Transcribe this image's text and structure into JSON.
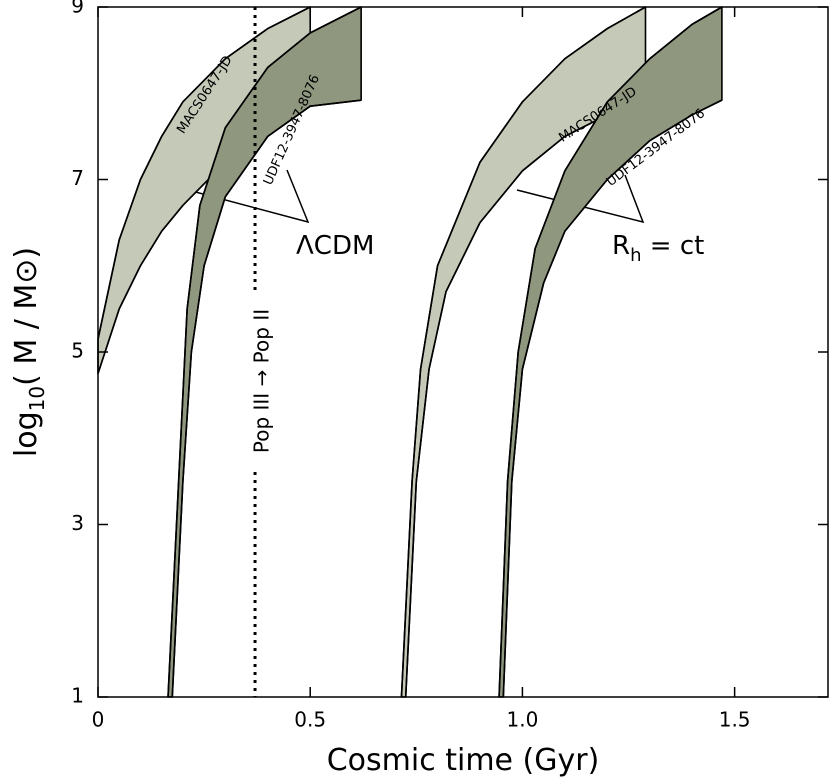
{
  "chart_data": {
    "type": "band",
    "xlabel": "Cosmic time (Gyr)",
    "ylabel": {
      "base": "log",
      "sub": "10",
      "rest": "( M / M⊙)"
    },
    "xlim": [
      0,
      1.72
    ],
    "ylim": [
      1,
      9
    ],
    "xticks": [
      0,
      0.5,
      {
        "value": 1,
        "label": "1.0"
      },
      1.5
    ],
    "yticks": [
      1,
      3,
      5,
      7,
      9
    ],
    "transition_x": 0.37,
    "annotations": {
      "lcdm": "ΛCDM",
      "rh": {
        "base": "R",
        "sub": "h",
        "rest": " = ct"
      },
      "transition": "Pop III  →  Pop II"
    },
    "series": [
      {
        "name": "MACS0647-JD",
        "color": "#c5c9b8",
        "upper_x": [
          0,
          0.05,
          0.1,
          0.15,
          0.2,
          0.3,
          0.4,
          0.5
        ],
        "upper": [
          5.15,
          6.3,
          7.0,
          7.5,
          7.9,
          8.4,
          8.75,
          9
        ],
        "lower_x": [
          0,
          0.05,
          0.1,
          0.15,
          0.2,
          0.3,
          0.4,
          0.5
        ],
        "lower": [
          4.75,
          5.5,
          6.0,
          6.4,
          6.7,
          7.2,
          7.6,
          7.9
        ]
      },
      {
        "name": "UDF12-3947-8076",
        "color": "#8f977f",
        "upper_x": [
          0.165,
          0.19,
          0.21,
          0.24,
          0.3,
          0.4,
          0.5,
          0.62
        ],
        "upper": [
          1,
          3.5,
          5.5,
          6.7,
          7.6,
          8.3,
          8.7,
          9
        ],
        "lower_x": [
          0.175,
          0.2,
          0.22,
          0.25,
          0.3,
          0.4,
          0.5,
          0.62
        ],
        "lower": [
          1,
          3.5,
          5.0,
          6.0,
          6.8,
          7.5,
          7.85,
          7.92
        ]
      },
      {
        "name": "MACS0647-JD",
        "color": "#c5c9b8",
        "upper_x": [
          0.715,
          0.74,
          0.76,
          0.8,
          0.9,
          1.0,
          1.1,
          1.2,
          1.29
        ],
        "upper": [
          1,
          3.5,
          4.8,
          6.0,
          7.2,
          7.9,
          8.4,
          8.75,
          9
        ],
        "lower_x": [
          0.725,
          0.75,
          0.78,
          0.82,
          0.9,
          1.0,
          1.1,
          1.2,
          1.29
        ],
        "lower": [
          1,
          3.5,
          4.8,
          5.7,
          6.5,
          7.1,
          7.5,
          7.75,
          7.92
        ]
      },
      {
        "name": "UDF12-3947-8076",
        "color": "#8f977f",
        "upper_x": [
          0.945,
          0.965,
          0.99,
          1.03,
          1.1,
          1.2,
          1.3,
          1.4,
          1.47
        ],
        "upper": [
          1,
          3.5,
          5.0,
          6.2,
          7.1,
          7.9,
          8.4,
          8.8,
          9
        ],
        "lower_x": [
          0.955,
          0.975,
          1.0,
          1.05,
          1.1,
          1.2,
          1.3,
          1.4,
          1.47
        ],
        "lower": [
          1,
          3.5,
          4.8,
          5.8,
          6.4,
          7.0,
          7.45,
          7.75,
          7.92
        ]
      }
    ]
  }
}
